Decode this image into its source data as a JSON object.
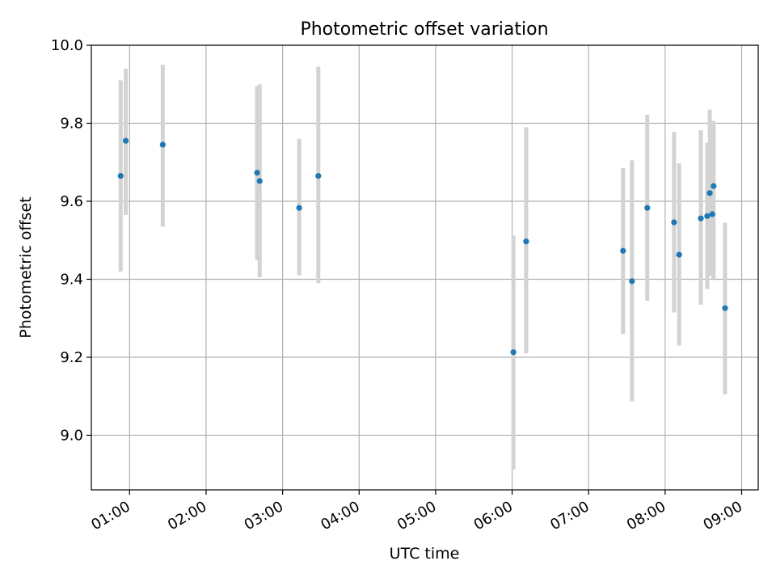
{
  "chart_data": {
    "type": "scatter",
    "title": "Photometric offset variation",
    "xlabel": "UTC time",
    "ylabel": "Photometric offset",
    "x_ticks": [
      "01:00",
      "02:00",
      "03:00",
      "04:00",
      "05:00",
      "06:00",
      "07:00",
      "08:00",
      "09:00"
    ],
    "y_ticks": [
      "9.0",
      "9.2",
      "9.4",
      "9.6",
      "9.8",
      "10.0"
    ],
    "xlim": [
      "00:30",
      "09:13"
    ],
    "ylim": [
      8.86,
      10.0
    ],
    "grid": true,
    "marker_color": "#1f77b4",
    "errorbar_color": "#d3d3d3",
    "points": [
      {
        "x": "00:53",
        "y": 9.665,
        "y_low": 9.42,
        "y_high": 9.91
      },
      {
        "x": "00:57",
        "y": 9.755,
        "y_low": 9.565,
        "y_high": 9.94
      },
      {
        "x": "01:26",
        "y": 9.745,
        "y_low": 9.535,
        "y_high": 9.95
      },
      {
        "x": "02:40",
        "y": 9.673,
        "y_low": 9.45,
        "y_high": 9.895
      },
      {
        "x": "02:42",
        "y": 9.652,
        "y_low": 9.405,
        "y_high": 9.9
      },
      {
        "x": "03:13",
        "y": 9.583,
        "y_low": 9.41,
        "y_high": 9.76
      },
      {
        "x": "03:28",
        "y": 9.665,
        "y_low": 9.39,
        "y_high": 9.945
      },
      {
        "x": "06:01",
        "y": 9.213,
        "y_low": 8.912,
        "y_high": 9.512
      },
      {
        "x": "06:11",
        "y": 9.497,
        "y_low": 9.21,
        "y_high": 9.79
      },
      {
        "x": "07:27",
        "y": 9.473,
        "y_low": 9.26,
        "y_high": 9.685
      },
      {
        "x": "07:34",
        "y": 9.395,
        "y_low": 9.087,
        "y_high": 9.705
      },
      {
        "x": "07:46",
        "y": 9.583,
        "y_low": 9.345,
        "y_high": 9.822
      },
      {
        "x": "08:07",
        "y": 9.546,
        "y_low": 9.315,
        "y_high": 9.778
      },
      {
        "x": "08:11",
        "y": 9.463,
        "y_low": 9.23,
        "y_high": 9.697
      },
      {
        "x": "08:28",
        "y": 9.556,
        "y_low": 9.335,
        "y_high": 9.782
      },
      {
        "x": "08:33",
        "y": 9.562,
        "y_low": 9.375,
        "y_high": 9.75
      },
      {
        "x": "08:35",
        "y": 9.621,
        "y_low": 9.408,
        "y_high": 9.835
      },
      {
        "x": "08:37",
        "y": 9.567,
        "y_low": 9.475,
        "y_high": 9.8
      },
      {
        "x": "08:38",
        "y": 9.639,
        "y_low": 9.4,
        "y_high": 9.806
      },
      {
        "x": "08:47",
        "y": 9.326,
        "y_low": 9.105,
        "y_high": 9.545
      }
    ]
  }
}
